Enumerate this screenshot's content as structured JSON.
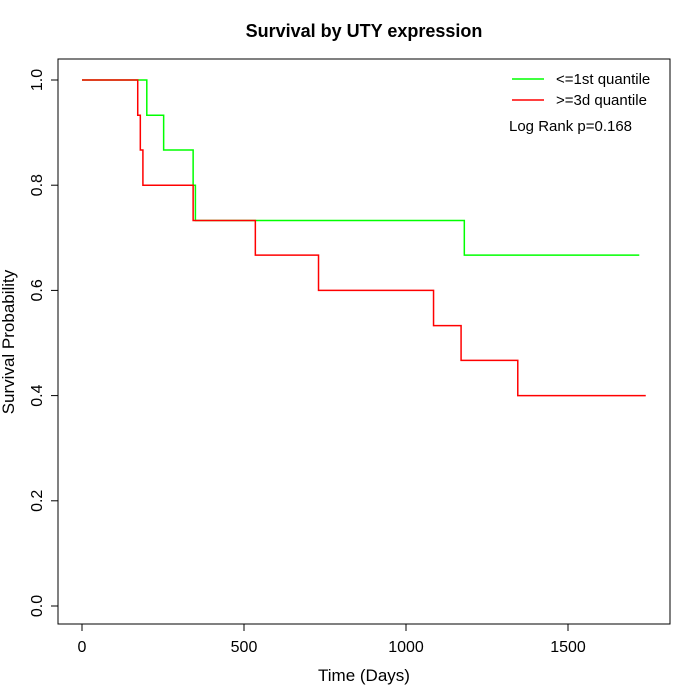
{
  "chart_data": {
    "type": "line",
    "step": true,
    "title": "Survival by UTY expression",
    "xlabel": "Time (Days)",
    "ylabel": "Survival Probability",
    "xlim": [
      0,
      1800
    ],
    "ylim": [
      0,
      1.0
    ],
    "x_ticks": [
      0,
      500,
      1000,
      1500
    ],
    "y_ticks": [
      0.0,
      0.2,
      0.4,
      0.6,
      0.8,
      1.0
    ],
    "y_tick_labels": [
      "0.0",
      "0.2",
      "0.4",
      "0.6",
      "0.8",
      "1.0"
    ],
    "grid": false,
    "legend_position": "top-right",
    "annotation": "Log Rank p=0.168",
    "series": [
      {
        "name": "<=1st quantile",
        "color": "#00ff00",
        "x": [
          0,
          200,
          252,
          343,
          350,
          1180,
          1720
        ],
        "y": [
          1.0,
          0.933,
          0.867,
          0.8,
          0.733,
          0.667,
          0.667
        ]
      },
      {
        "name": ">=3d quantile",
        "color": "#ff0000",
        "x": [
          0,
          172,
          180,
          188,
          343,
          535,
          730,
          1085,
          1170,
          1345,
          1740
        ],
        "y": [
          1.0,
          0.933,
          0.867,
          0.8,
          0.733,
          0.667,
          0.6,
          0.533,
          0.467,
          0.4,
          0.4
        ]
      }
    ]
  }
}
